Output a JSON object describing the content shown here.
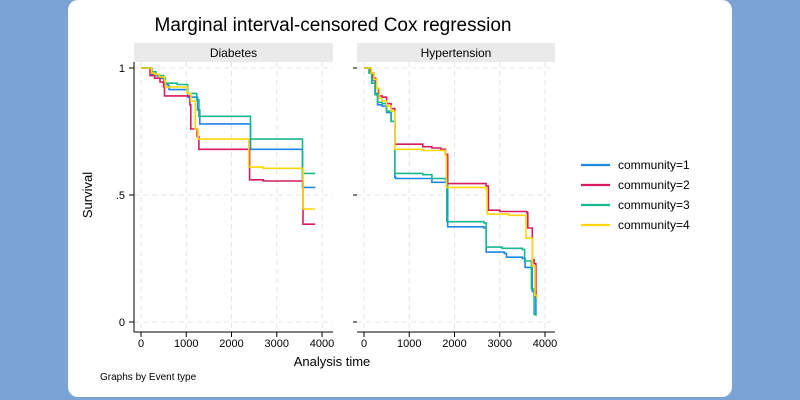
{
  "chart_data": {
    "type": "line",
    "title": "Marginal interval-censored Cox regression",
    "xlabel": "Analysis time",
    "ylabel": "Survival",
    "note": "Graphs by Event type",
    "xlim": [
      0,
      4000
    ],
    "ylim": [
      0,
      1
    ],
    "xticks": [
      0,
      1000,
      2000,
      3000,
      4000
    ],
    "xtick_labels": [
      "0",
      "1000",
      "2000",
      "3000",
      "4000"
    ],
    "yticks": [
      0,
      0.5,
      1
    ],
    "ytick_labels": [
      "0",
      ".5",
      "1"
    ],
    "grid": true,
    "legend_position": "right",
    "legend": [
      "community=1",
      "community=2",
      "community=3",
      "community=4"
    ],
    "colors": [
      "#1e88e5",
      "#d81b60",
      "#17b890",
      "#ffd60a"
    ],
    "panels": [
      {
        "name": "Diabetes",
        "series": [
          {
            "name": "community=1",
            "points": [
              [
                0,
                1
              ],
              [
                200,
                1
              ],
              [
                220,
                0.975
              ],
              [
                300,
                0.97
              ],
              [
                380,
                0.96
              ],
              [
                500,
                0.95
              ],
              [
                520,
                0.935
              ],
              [
                600,
                0.93
              ],
              [
                620,
                0.915
              ],
              [
                1000,
                0.915
              ],
              [
                1030,
                0.885
              ],
              [
                1200,
                0.885
              ],
              [
                1250,
                0.835
              ],
              [
                1300,
                0.78
              ],
              [
                2400,
                0.78
              ],
              [
                2420,
                0.68
              ],
              [
                3550,
                0.68
              ],
              [
                3570,
                0.53
              ],
              [
                3850,
                0.53
              ]
            ]
          },
          {
            "name": "community=2",
            "points": [
              [
                0,
                1
              ],
              [
                170,
                1
              ],
              [
                200,
                0.97
              ],
              [
                300,
                0.96
              ],
              [
                420,
                0.945
              ],
              [
                500,
                0.925
              ],
              [
                520,
                0.89
              ],
              [
                1000,
                0.89
              ],
              [
                1080,
                0.855
              ],
              [
                1100,
                0.76
              ],
              [
                1200,
                0.76
              ],
              [
                1240,
                0.73
              ],
              [
                1280,
                0.68
              ],
              [
                2380,
                0.68
              ],
              [
                2400,
                0.56
              ],
              [
                2700,
                0.555
              ],
              [
                3560,
                0.555
              ],
              [
                3580,
                0.385
              ],
              [
                3850,
                0.385
              ]
            ]
          },
          {
            "name": "community=3",
            "points": [
              [
                0,
                1
              ],
              [
                220,
                1
              ],
              [
                240,
                0.985
              ],
              [
                330,
                0.975
              ],
              [
                400,
                0.97
              ],
              [
                500,
                0.96
              ],
              [
                540,
                0.94
              ],
              [
                800,
                0.935
              ],
              [
                1000,
                0.935
              ],
              [
                1030,
                0.9
              ],
              [
                1200,
                0.9
              ],
              [
                1230,
                0.875
              ],
              [
                1280,
                0.81
              ],
              [
                2400,
                0.81
              ],
              [
                2420,
                0.72
              ],
              [
                3550,
                0.72
              ],
              [
                3570,
                0.585
              ],
              [
                3850,
                0.585
              ]
            ]
          },
          {
            "name": "community=4",
            "points": [
              [
                0,
                1
              ],
              [
                210,
                1
              ],
              [
                230,
                0.98
              ],
              [
                300,
                0.975
              ],
              [
                400,
                0.965
              ],
              [
                520,
                0.95
              ],
              [
                540,
                0.925
              ],
              [
                1000,
                0.925
              ],
              [
                1020,
                0.9
              ],
              [
                1100,
                0.87
              ],
              [
                1200,
                0.76
              ],
              [
                1260,
                0.72
              ],
              [
                2360,
                0.72
              ],
              [
                2380,
                0.61
              ],
              [
                2700,
                0.605
              ],
              [
                3560,
                0.605
              ],
              [
                3580,
                0.445
              ],
              [
                3850,
                0.445
              ]
            ]
          }
        ]
      },
      {
        "name": "Hypertension",
        "series": [
          {
            "name": "community=1",
            "points": [
              [
                0,
                1
              ],
              [
                80,
                1
              ],
              [
                120,
                0.98
              ],
              [
                180,
                0.95
              ],
              [
                250,
                0.9
              ],
              [
                300,
                0.855
              ],
              [
                400,
                0.85
              ],
              [
                500,
                0.825
              ],
              [
                600,
                0.79
              ],
              [
                680,
                0.57
              ],
              [
                700,
                0.565
              ],
              [
                1400,
                0.565
              ],
              [
                1500,
                0.55
              ],
              [
                1800,
                0.55
              ],
              [
                1850,
                0.375
              ],
              [
                2650,
                0.37
              ],
              [
                2700,
                0.275
              ],
              [
                3100,
                0.27
              ],
              [
                3150,
                0.255
              ],
              [
                3500,
                0.25
              ],
              [
                3560,
                0.215
              ],
              [
                3680,
                0.215
              ],
              [
                3720,
                0.12
              ],
              [
                3800,
                0.025
              ]
            ]
          },
          {
            "name": "community=2",
            "points": [
              [
                0,
                1
              ],
              [
                100,
                1
              ],
              [
                140,
                0.98
              ],
              [
                200,
                0.96
              ],
              [
                260,
                0.92
              ],
              [
                320,
                0.89
              ],
              [
                400,
                0.885
              ],
              [
                500,
                0.86
              ],
              [
                600,
                0.84
              ],
              [
                680,
                0.7
              ],
              [
                1300,
                0.69
              ],
              [
                1500,
                0.685
              ],
              [
                1700,
                0.68
              ],
              [
                1800,
                0.66
              ],
              [
                1850,
                0.545
              ],
              [
                2700,
                0.535
              ],
              [
                2750,
                0.44
              ],
              [
                3000,
                0.435
              ],
              [
                3600,
                0.43
              ],
              [
                3620,
                0.37
              ],
              [
                3680,
                0.37
              ],
              [
                3720,
                0.245
              ],
              [
                3760,
                0.23
              ],
              [
                3800,
                0.1
              ]
            ]
          },
          {
            "name": "community=3",
            "points": [
              [
                0,
                1
              ],
              [
                70,
                1
              ],
              [
                110,
                0.98
              ],
              [
                170,
                0.94
              ],
              [
                240,
                0.895
              ],
              [
                300,
                0.865
              ],
              [
                400,
                0.86
              ],
              [
                500,
                0.83
              ],
              [
                600,
                0.79
              ],
              [
                680,
                0.585
              ],
              [
                1300,
                0.58
              ],
              [
                1500,
                0.565
              ],
              [
                1800,
                0.56
              ],
              [
                1830,
                0.395
              ],
              [
                2650,
                0.39
              ],
              [
                2700,
                0.295
              ],
              [
                3050,
                0.29
              ],
              [
                3500,
                0.285
              ],
              [
                3550,
                0.24
              ],
              [
                3680,
                0.24
              ],
              [
                3700,
                0.13
              ],
              [
                3760,
                0.03
              ],
              [
                3800,
                0.025
              ]
            ]
          },
          {
            "name": "community=4",
            "points": [
              [
                0,
                1
              ],
              [
                120,
                1
              ],
              [
                160,
                0.98
              ],
              [
                220,
                0.955
              ],
              [
                280,
                0.92
              ],
              [
                340,
                0.88
              ],
              [
                400,
                0.87
              ],
              [
                500,
                0.85
              ],
              [
                600,
                0.83
              ],
              [
                680,
                0.68
              ],
              [
                1300,
                0.675
              ],
              [
                1500,
                0.675
              ],
              [
                1800,
                0.655
              ],
              [
                1820,
                0.53
              ],
              [
                2700,
                0.52
              ],
              [
                2720,
                0.425
              ],
              [
                3200,
                0.42
              ],
              [
                3560,
                0.42
              ],
              [
                3580,
                0.33
              ],
              [
                3680,
                0.33
              ],
              [
                3720,
                0.22
              ],
              [
                3780,
                0.105
              ],
              [
                3820,
                0.095
              ]
            ]
          }
        ]
      }
    ]
  }
}
